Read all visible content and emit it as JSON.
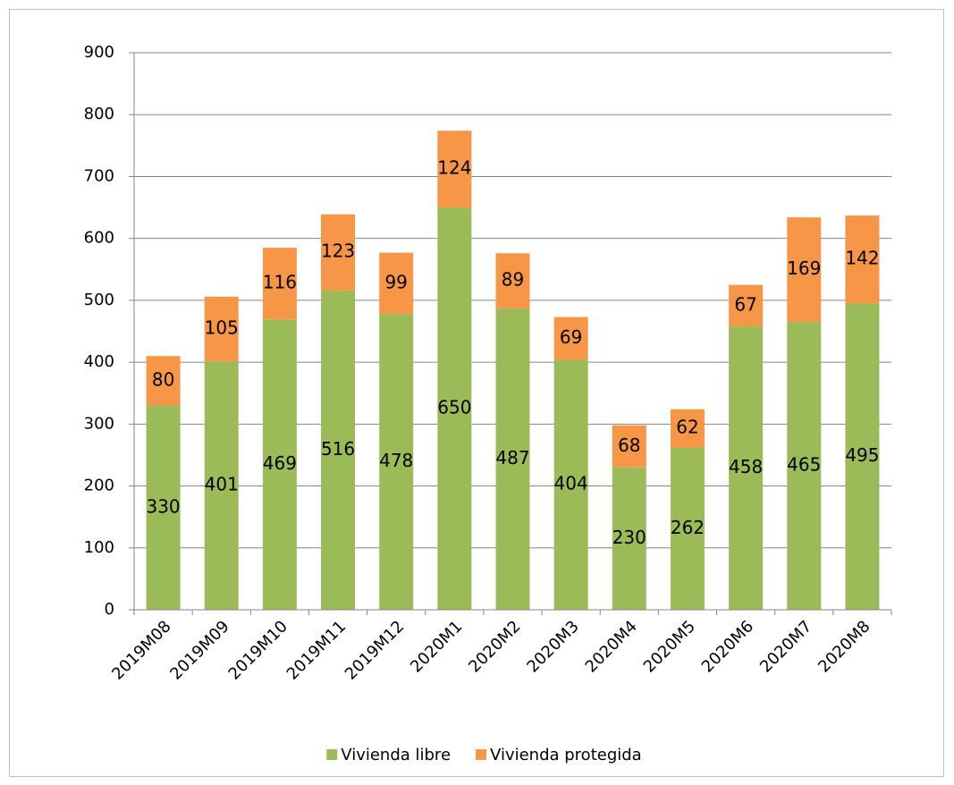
{
  "chart_data": {
    "type": "bar",
    "stacked": true,
    "categories": [
      "2019M08",
      "2019M09",
      "2019M10",
      "2019M11",
      "2019M12",
      "2020M1",
      "2020M2",
      "2020M3",
      "2020M4",
      "2020M5",
      "2020M6",
      "2020M7",
      "2020M8"
    ],
    "series": [
      {
        "name": "Vivienda libre",
        "color": "#9bbb59",
        "values": [
          330,
          401,
          469,
          516,
          478,
          650,
          487,
          404,
          230,
          262,
          458,
          465,
          495
        ]
      },
      {
        "name": "Vivienda protegida",
        "color": "#f79646",
        "values": [
          80,
          105,
          116,
          123,
          99,
          124,
          89,
          69,
          68,
          62,
          67,
          169,
          142
        ]
      }
    ],
    "ylim": [
      0,
      900
    ],
    "yticks": [
      0,
      100,
      200,
      300,
      400,
      500,
      600,
      700,
      800,
      900
    ],
    "grid": true,
    "data_labels": true,
    "legend": "bottom"
  }
}
